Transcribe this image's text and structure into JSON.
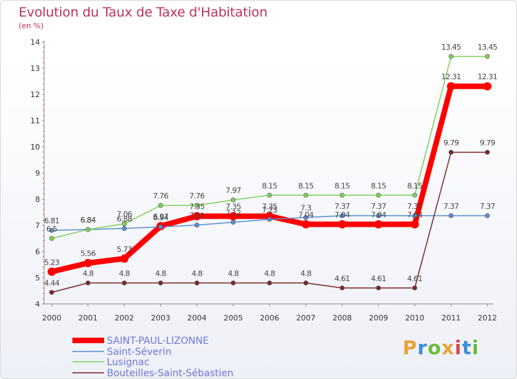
{
  "title": "Evolution du Taux de Taxe d'Habitation",
  "subtitle": "(en %)",
  "logo": "Proxiti",
  "logo_colors": [
    "#e8a33a",
    "#3b8fd8",
    "#6bbd3a",
    "#e8a33a",
    "#d94848",
    "#3b8fd8",
    "#6bbd3a"
  ],
  "chart_data": {
    "type": "line",
    "title": "Evolution du Taux de Taxe d'Habitation",
    "ylabel": "(en %)",
    "xlabel": "",
    "ylim": [
      4,
      14
    ],
    "y_ticks": [
      4,
      5,
      6,
      7,
      8,
      9,
      10,
      11,
      12,
      13,
      14
    ],
    "x": [
      "2000",
      "2001",
      "2002",
      "2003",
      "2004",
      "2005",
      "2006",
      "2007",
      "2008",
      "2009",
      "2010",
      "2011",
      "2012"
    ],
    "legend_position": "bottom-left",
    "series": [
      {
        "name": "SAINT-PAUL-LIZONNE",
        "color": "#ff0000",
        "width": 8,
        "values": [
          5.23,
          5.56,
          5.73,
          6.97,
          7.35,
          7.35,
          7.35,
          7.04,
          7.04,
          7.04,
          7.04,
          12.31,
          12.31
        ],
        "labels": [
          "5.23",
          "5.56",
          "5.73",
          "6.97",
          "7.35",
          "7.35",
          "7.35",
          "7.04",
          "7.04",
          "7.04",
          "7.04",
          "12.31",
          "12.31"
        ]
      },
      {
        "name": "Saint-Séverin",
        "color": "#5b8fd0",
        "width": 1.5,
        "values": [
          6.81,
          6.84,
          6.88,
          6.94,
          7.01,
          7.12,
          7.23,
          7.3,
          7.37,
          7.37,
          7.37,
          7.37,
          7.37
        ],
        "labels": [
          "6.81",
          "6.84",
          "6.88",
          "6.94",
          "7.01",
          "7.12",
          "7.23",
          "7.3",
          "7.37",
          "7.37",
          "7.37",
          "7.37",
          "7.37"
        ]
      },
      {
        "name": "Lusignac",
        "color": "#7fd05a",
        "width": 1.5,
        "values": [
          6.5,
          6.84,
          7.06,
          7.76,
          7.76,
          7.97,
          8.15,
          8.15,
          8.15,
          8.15,
          8.15,
          13.45,
          13.45
        ],
        "labels": [
          "6.5",
          "6.84",
          "7.06",
          "7.76",
          "7.76",
          "7.97",
          "8.15",
          "8.15",
          "8.15",
          "8.15",
          "8.15",
          "13.45",
          "13.45"
        ]
      },
      {
        "name": "Bouteilles-Saint-Sébastien",
        "color": "#7a2a2a",
        "width": 1.5,
        "values": [
          4.44,
          4.8,
          4.8,
          4.8,
          4.8,
          4.8,
          4.8,
          4.8,
          4.61,
          4.61,
          4.61,
          9.79,
          9.79
        ],
        "labels": [
          "4.44",
          "4.8",
          "4.8",
          "4.8",
          "4.8",
          "4.8",
          "4.8",
          "4.8",
          "4.61",
          "4.61",
          "4.61",
          "9.79",
          "9.79"
        ]
      }
    ]
  }
}
